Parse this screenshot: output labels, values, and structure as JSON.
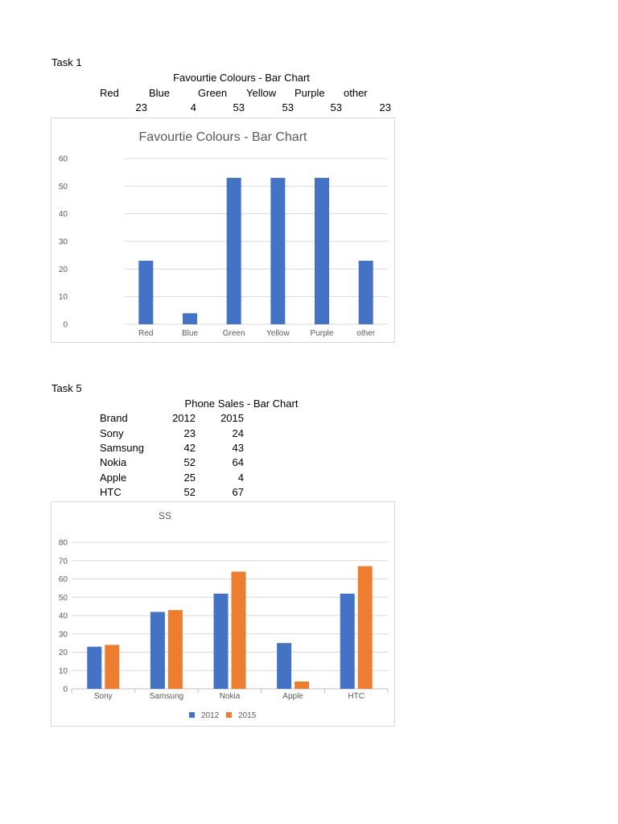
{
  "task1": {
    "label": "Task 1",
    "table_title": "Favourtie Colours - Bar Chart",
    "headers": [
      "Red",
      "Blue",
      "Green",
      "Yellow",
      "Purple",
      "other"
    ],
    "values": [
      "23",
      "4",
      "53",
      "53",
      "53",
      "23"
    ]
  },
  "task5": {
    "label": "Task 5",
    "table_title": "Phone Sales - Bar Chart",
    "header_brand": "Brand",
    "header_y1": "2012",
    "header_y2": "2015",
    "rows": [
      {
        "brand": "Sony",
        "y1": "23",
        "y2": "24"
      },
      {
        "brand": "Samsung",
        "y1": "42",
        "y2": "43"
      },
      {
        "brand": "Nokia",
        "y1": "52",
        "y2": "64"
      },
      {
        "brand": "Apple",
        "y1": "25",
        "y2": "4"
      },
      {
        "brand": "HTC",
        "y1": "52",
        "y2": "67"
      }
    ]
  },
  "chart_data": [
    {
      "type": "bar",
      "title": "Favourtie Colours - Bar Chart",
      "categories": [
        "Red",
        "Blue",
        "Green",
        "Yellow",
        "Purple",
        "other"
      ],
      "values": [
        23,
        4,
        53,
        53,
        53,
        23
      ],
      "ylim": [
        0,
        60
      ],
      "yticks": [
        0,
        10,
        20,
        30,
        40,
        50,
        60
      ],
      "grid": true,
      "color": "#4472c4"
    },
    {
      "type": "bar",
      "title": "SS",
      "categories": [
        "Sony",
        "Samsung",
        "Nokia",
        "Apple",
        "HTC"
      ],
      "series": [
        {
          "name": "2012",
          "values": [
            23,
            42,
            52,
            25,
            52
          ],
          "color": "#4472c4"
        },
        {
          "name": "2015",
          "values": [
            24,
            43,
            64,
            4,
            67
          ],
          "color": "#ed7d31"
        }
      ],
      "ylim": [
        0,
        80
      ],
      "yticks": [
        0,
        10,
        20,
        30,
        40,
        50,
        60,
        70,
        80
      ],
      "grid": true,
      "legend": "bottom"
    }
  ]
}
